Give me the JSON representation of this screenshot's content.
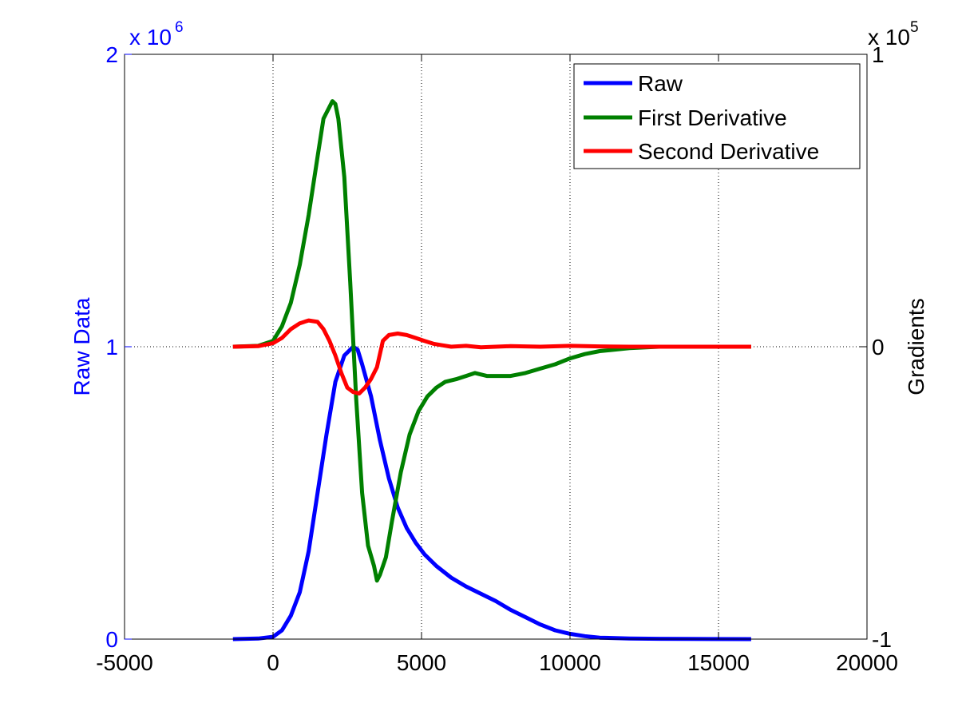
{
  "chart_data": {
    "type": "line",
    "title": "",
    "x_axis": {
      "range": [
        -5000,
        20000
      ],
      "ticks": [
        -5000,
        0,
        5000,
        10000,
        15000,
        20000
      ],
      "tick_labels": [
        "-5000",
        "0",
        "5000",
        "10000",
        "15000",
        "20000"
      ],
      "label": ""
    },
    "y_left": {
      "label": "Raw Data",
      "range": [
        0,
        2
      ],
      "ticks": [
        0,
        1,
        2
      ],
      "tick_labels": [
        "0",
        "1",
        "2"
      ],
      "multiplier_base": "x 10",
      "multiplier_exp": "6",
      "color": "#0000ff"
    },
    "y_right": {
      "label": "Gradients",
      "range": [
        -1,
        1
      ],
      "ticks": [
        -1,
        0,
        1
      ],
      "tick_labels": [
        "-1",
        "0",
        "1"
      ],
      "multiplier_base": "x 10",
      "multiplier_exp": "5",
      "color": "#000000"
    },
    "grid": true,
    "legend_position": "top-right",
    "series": [
      {
        "name": "Raw",
        "axis": "left",
        "color": "#0000ff",
        "x": [
          -1350,
          -500,
          0,
          300,
          600,
          900,
          1200,
          1500,
          1800,
          2100,
          2400,
          2700,
          2850,
          3000,
          3300,
          3600,
          3900,
          4200,
          4500,
          4800,
          5100,
          5500,
          6000,
          6500,
          7000,
          7500,
          8000,
          8500,
          9000,
          9500,
          10000,
          10500,
          11000,
          12000,
          13000,
          14000,
          16100
        ],
        "y": [
          0,
          0.002,
          0.008,
          0.03,
          0.08,
          0.16,
          0.3,
          0.5,
          0.7,
          0.88,
          0.97,
          1.0,
          0.99,
          0.94,
          0.83,
          0.68,
          0.55,
          0.45,
          0.38,
          0.33,
          0.29,
          0.25,
          0.21,
          0.18,
          0.155,
          0.13,
          0.1,
          0.075,
          0.05,
          0.03,
          0.018,
          0.01,
          0.005,
          0.002,
          0.001,
          0.0005,
          0
        ]
      },
      {
        "name": "First Derivative",
        "axis": "right",
        "color": "#008000",
        "x": [
          -1350,
          -500,
          0,
          300,
          600,
          900,
          1200,
          1500,
          1700,
          1900,
          2000,
          2100,
          2200,
          2400,
          2600,
          2800,
          3000,
          3200,
          3400,
          3500,
          3600,
          3800,
          4000,
          4300,
          4600,
          4900,
          5200,
          5500,
          5800,
          6200,
          6500,
          6800,
          7200,
          7600,
          8000,
          8500,
          9000,
          9500,
          10000,
          10500,
          11000,
          12000,
          13000,
          16100
        ],
        "y": [
          0,
          0.003,
          0.02,
          0.07,
          0.15,
          0.28,
          0.45,
          0.65,
          0.78,
          0.82,
          0.84,
          0.83,
          0.78,
          0.58,
          0.22,
          -0.18,
          -0.5,
          -0.68,
          -0.75,
          -0.8,
          -0.78,
          -0.72,
          -0.6,
          -0.43,
          -0.3,
          -0.22,
          -0.17,
          -0.14,
          -0.12,
          -0.11,
          -0.1,
          -0.09,
          -0.1,
          -0.1,
          -0.1,
          -0.09,
          -0.075,
          -0.06,
          -0.04,
          -0.025,
          -0.015,
          -0.005,
          0,
          0
        ]
      },
      {
        "name": "Second Derivative",
        "axis": "right",
        "color": "#ff0000",
        "x": [
          -1350,
          -500,
          0,
          300,
          600,
          900,
          1200,
          1500,
          1700,
          1900,
          2100,
          2300,
          2500,
          2700,
          2900,
          3100,
          3300,
          3500,
          3700,
          3900,
          4200,
          4500,
          4800,
          5100,
          5400,
          5700,
          6000,
          6500,
          7000,
          8000,
          9000,
          10000,
          11000,
          12000,
          16100
        ],
        "y": [
          0,
          0.002,
          0.012,
          0.03,
          0.06,
          0.08,
          0.09,
          0.085,
          0.06,
          0.02,
          -0.03,
          -0.09,
          -0.14,
          -0.155,
          -0.16,
          -0.14,
          -0.11,
          -0.07,
          0.02,
          0.04,
          0.045,
          0.04,
          0.03,
          0.02,
          0.01,
          0.005,
          0.0,
          0.003,
          -0.002,
          0.002,
          0.0,
          0.003,
          0.001,
          0.0,
          0
        ]
      }
    ]
  }
}
